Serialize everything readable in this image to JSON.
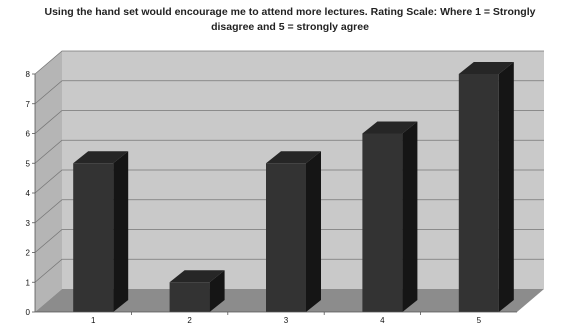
{
  "chart_data": {
    "type": "bar",
    "title": "Using the hand set would encourage me to attend more lectures. Rating Scale:  Where 1 = Strongly disagree and 5 = strongly agree",
    "categories": [
      "1",
      "2",
      "3",
      "4",
      "5"
    ],
    "values": [
      5,
      1,
      5,
      6,
      8
    ],
    "xlabel": "",
    "ylabel": "",
    "ylim": [
      0,
      8
    ],
    "yticks": [
      "0",
      "1",
      "2",
      "3",
      "4",
      "5",
      "6",
      "7",
      "8"
    ],
    "grid": true,
    "legend": "none",
    "style": "3d-column",
    "colors": {
      "bar_front": "#333333",
      "bar_top": "#262626",
      "bar_side": "#151515",
      "wall": "#c9c9c9",
      "floor": "#8c8c8c",
      "gridline": "#777777"
    }
  }
}
